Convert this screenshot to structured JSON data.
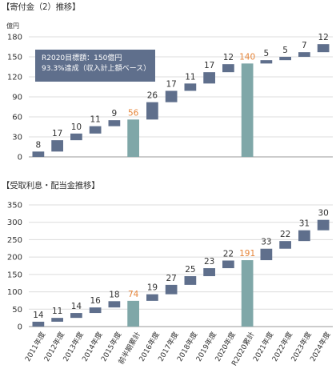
{
  "charts_titles": {
    "donations": "【寄付金（2）推移】",
    "interest": "【受取利息・配当金推移】"
  },
  "colors": {
    "increment": "#5f6f8c",
    "total": "#7fa7a8",
    "total_label": "#e6853a",
    "box_bg": "#5f6f8c"
  },
  "annotation": {
    "line1": "R2020目標額：150億円",
    "line2": "93.3%達成（収入計上額ベース）"
  },
  "chart_data": [
    {
      "type": "bar",
      "subtype": "waterfall",
      "title": "【寄付金（2）推移】",
      "yunit": "億円",
      "ylim": [
        0,
        180
      ],
      "yticks": [
        0,
        30,
        60,
        90,
        120,
        150,
        180
      ],
      "categories": [
        "2011年度",
        "2012年度",
        "2013年度",
        "2014年度",
        "2015年度",
        "前半期累計",
        "2016年度",
        "2017年度",
        "2018年度",
        "2019年度",
        "2020年度",
        "R2020累計",
        "2021年度",
        "2022年度",
        "2023年度",
        "2024年度"
      ],
      "values": [
        8,
        17,
        10,
        11,
        9,
        56,
        26,
        17,
        11,
        17,
        12,
        140,
        5,
        5,
        7,
        12
      ],
      "is_total": [
        false,
        false,
        false,
        false,
        false,
        true,
        false,
        false,
        false,
        false,
        false,
        true,
        false,
        false,
        false,
        false
      ],
      "bases": [
        0,
        8,
        25,
        35,
        46,
        0,
        56,
        82,
        99,
        110,
        127,
        0,
        140,
        145,
        150,
        157
      ]
    },
    {
      "type": "bar",
      "subtype": "waterfall",
      "title": "【受取利息・配当金推移】",
      "ylim": [
        0,
        350
      ],
      "yticks": [
        0,
        50,
        100,
        150,
        200,
        250,
        300,
        350
      ],
      "categories": [
        "2011年度",
        "2012年度",
        "2013年度",
        "2014年度",
        "2015年度",
        "前半期累計",
        "2016年度",
        "2017年度",
        "2018年度",
        "2019年度",
        "2020年度",
        "R2020累計",
        "2021年度",
        "2022年度",
        "2023年度",
        "2024年度"
      ],
      "values": [
        14,
        11,
        14,
        16,
        18,
        74,
        19,
        27,
        25,
        23,
        22,
        191,
        33,
        22,
        31,
        30
      ],
      "is_total": [
        false,
        false,
        false,
        false,
        false,
        true,
        false,
        false,
        false,
        false,
        false,
        true,
        false,
        false,
        false,
        false
      ],
      "bases": [
        0,
        14,
        25,
        39,
        55,
        0,
        74,
        93,
        120,
        145,
        168,
        0,
        191,
        224,
        246,
        277
      ]
    }
  ]
}
